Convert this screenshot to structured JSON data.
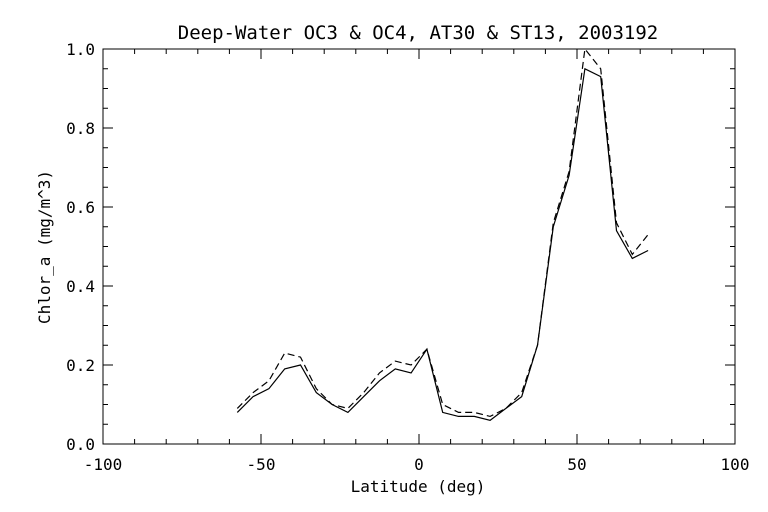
{
  "chart_data": {
    "type": "line",
    "title": "Deep-Water OC3 & OC4, AT30 & ST13, 2003192",
    "xlabel": "Latitude (deg)",
    "ylabel": "Chlor_a (mg/m^3)",
    "xlim": [
      -100,
      100
    ],
    "ylim": [
      0.0,
      1.0
    ],
    "x_ticks": [
      "-100",
      "-50",
      "0",
      "50",
      "100"
    ],
    "y_ticks": [
      "0.0",
      "0.2",
      "0.4",
      "0.6",
      "0.8",
      "1.0"
    ],
    "grid": false,
    "series": [
      {
        "style": "solid",
        "x": [
          -57.5,
          -52.5,
          -47.5,
          -42.5,
          -37.5,
          -32.5,
          -27.5,
          -22.5,
          -17.5,
          -12.5,
          -7.5,
          -2.5,
          2.5,
          7.5,
          12.5,
          17.5,
          22.5,
          27.5,
          32.5,
          37.5,
          42.5,
          47.5,
          52.5,
          57.5,
          62.5,
          67.5,
          72.5
        ],
        "values": [
          0.08,
          0.12,
          0.14,
          0.19,
          0.2,
          0.13,
          0.1,
          0.08,
          0.12,
          0.16,
          0.19,
          0.18,
          0.24,
          0.08,
          0.07,
          0.07,
          0.06,
          0.09,
          0.12,
          0.25,
          0.55,
          0.68,
          0.95,
          0.93,
          0.54,
          0.47,
          0.49
        ]
      },
      {
        "style": "dashed",
        "x": [
          -57.5,
          -52.5,
          -47.5,
          -42.5,
          -37.5,
          -32.5,
          -27.5,
          -22.5,
          -17.5,
          -12.5,
          -7.5,
          -2.5,
          2.5,
          7.5,
          12.5,
          17.5,
          22.5,
          27.5,
          32.5,
          37.5,
          42.5,
          47.5,
          52.5,
          57.5,
          62.5,
          67.5,
          72.5
        ],
        "values": [
          0.09,
          0.13,
          0.16,
          0.23,
          0.22,
          0.14,
          0.1,
          0.09,
          0.13,
          0.18,
          0.21,
          0.2,
          0.24,
          0.1,
          0.08,
          0.08,
          0.07,
          0.09,
          0.13,
          0.25,
          0.56,
          0.69,
          1.0,
          0.95,
          0.56,
          0.48,
          0.53
        ]
      }
    ]
  }
}
